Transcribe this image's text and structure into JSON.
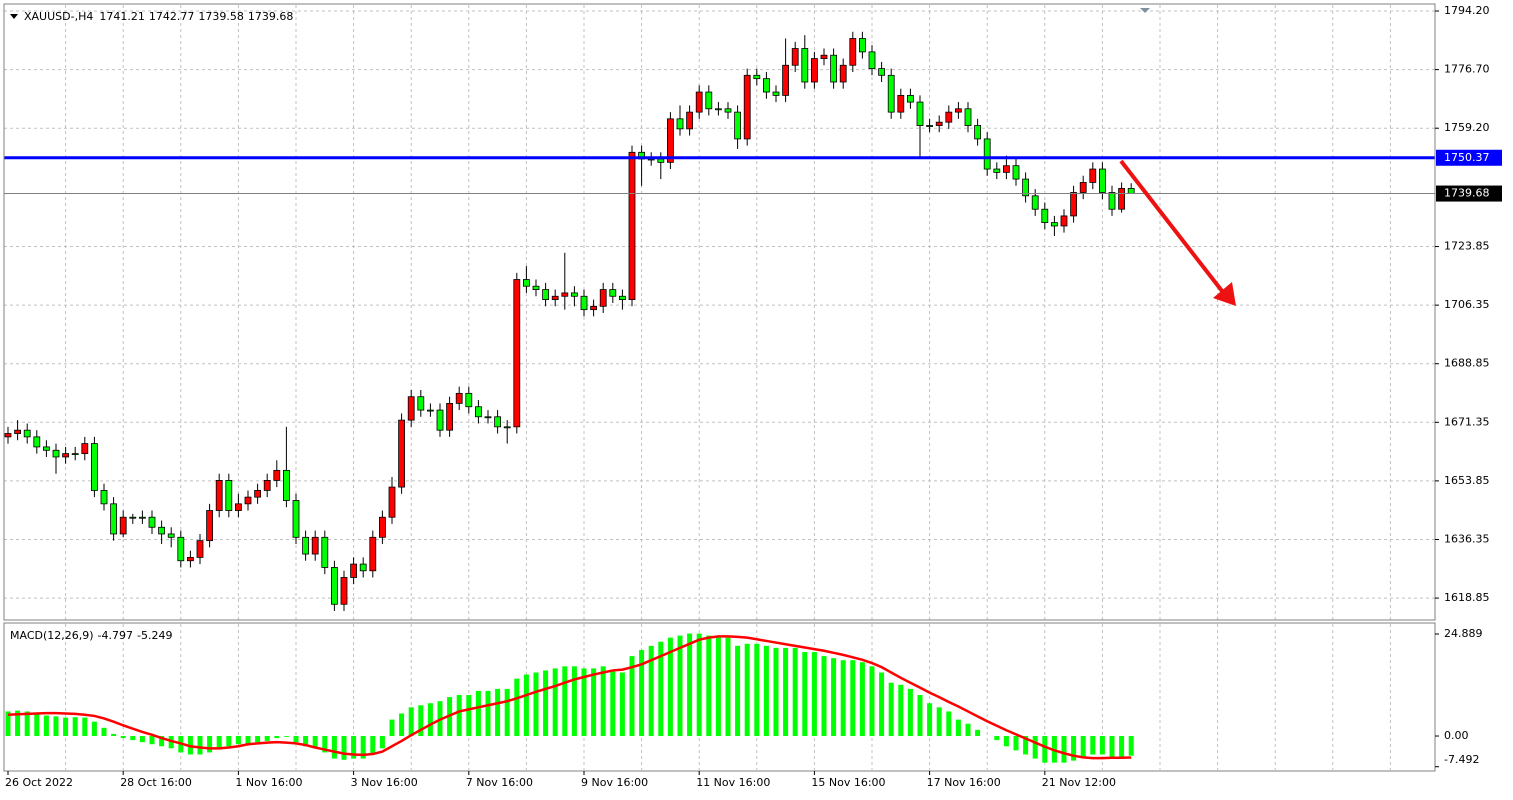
{
  "chart_data": [
    {
      "type": "candlestick",
      "title": "XAUUSD-,H4",
      "categories": [
        "26 Oct 2022",
        null,
        null,
        null,
        null,
        null,
        null,
        null,
        null,
        null,
        null,
        null,
        "28 Oct 16:00",
        null,
        null,
        null,
        null,
        null,
        null,
        null,
        null,
        null,
        null,
        null,
        "1 Nov 16:00",
        null,
        null,
        null,
        null,
        null,
        null,
        null,
        null,
        null,
        null,
        null,
        "3 Nov 16:00",
        null,
        null,
        null,
        null,
        null,
        null,
        null,
        null,
        null,
        null,
        null,
        "7 Nov 16:00",
        null,
        null,
        null,
        null,
        null,
        null,
        null,
        null,
        null,
        null,
        null,
        "9 Nov 16:00",
        null,
        null,
        null,
        null,
        null,
        null,
        null,
        null,
        null,
        null,
        null,
        "11 Nov 16:00",
        null,
        null,
        null,
        null,
        null,
        null,
        null,
        null,
        null,
        null,
        null,
        "15 Nov 16:00",
        null,
        null,
        null,
        null,
        null,
        null,
        null,
        null,
        null,
        null,
        null,
        "17 Nov 16:00",
        null,
        null,
        null,
        null,
        null,
        null,
        null,
        null,
        null,
        null,
        null,
        "21 Nov 12:00",
        null,
        null,
        null,
        null,
        null,
        null,
        null,
        null,
        null
      ],
      "open": [
        1667,
        1668,
        1669,
        1667,
        1664,
        1663,
        1661,
        1662,
        1662,
        1665,
        1651,
        1647,
        1638,
        1643,
        1643,
        1643,
        1640,
        1638,
        1637,
        1630,
        1631,
        1636,
        1645,
        1654,
        1645,
        1647,
        1649,
        1651,
        1654,
        1657,
        1648,
        1637,
        1632,
        1637,
        1628,
        1617,
        1625,
        1629,
        1627,
        1637,
        1643,
        1652,
        1672,
        1679,
        1675,
        1675,
        1669,
        1677,
        1680,
        1676,
        1673,
        1673,
        1670,
        1670,
        1714,
        1712,
        1711,
        1708,
        1709,
        1710,
        1709,
        1705,
        1706,
        1711,
        1709,
        1708,
        1752,
        1750,
        1750,
        1749,
        1762,
        1759,
        1764,
        1770,
        1765,
        1765,
        1764,
        1756,
        1775,
        1774,
        1770,
        1769,
        1778,
        1783,
        1773,
        1780,
        1781,
        1773,
        1778,
        1786,
        1782,
        1777,
        1775,
        1764,
        1769,
        1767,
        1760,
        1760,
        1761,
        1764,
        1765,
        1760,
        1756,
        1747,
        1746,
        1748,
        1744,
        1739,
        1735,
        1731,
        1730,
        1733,
        1740,
        1743,
        1747,
        1740,
        1735,
        1741.21
      ],
      "high": [
        1670,
        1672,
        1671,
        1669,
        1666,
        1665,
        1664,
        1664,
        1667,
        1667,
        1653,
        1649,
        1645,
        1644,
        1645,
        1645,
        1642,
        1640,
        1639,
        1633,
        1638,
        1647,
        1656,
        1656,
        1650,
        1651,
        1653,
        1656,
        1660,
        1670,
        1650,
        1639,
        1639,
        1639,
        1630,
        1627,
        1631,
        1631,
        1639,
        1645,
        1655,
        1674,
        1681,
        1681,
        1677,
        1677,
        1679,
        1682,
        1682,
        1678,
        1675,
        1675,
        1672,
        1716,
        1718,
        1714,
        1713,
        1711,
        1722,
        1712,
        1711,
        1708,
        1713,
        1713,
        1711,
        1754,
        1754,
        1752,
        1752,
        1764,
        1766,
        1766,
        1772,
        1772,
        1767,
        1767,
        1766,
        1777,
        1777,
        1776,
        1772,
        1786,
        1785,
        1787,
        1782,
        1783,
        1783,
        1780,
        1788,
        1788,
        1784,
        1779,
        1777,
        1771,
        1771,
        1769,
        1762,
        1763,
        1766,
        1767,
        1767,
        1762,
        1758,
        1749,
        1751,
        1750,
        1746,
        1741,
        1737,
        1733,
        1735,
        1742,
        1745,
        1749,
        1749,
        1742,
        1743,
        1742.77
      ],
      "low": [
        1665,
        1666,
        1665,
        1662,
        1661,
        1656,
        1659,
        1660,
        1660,
        1649,
        1645,
        1636,
        1637,
        1641,
        1641,
        1638,
        1635,
        1634,
        1628,
        1628,
        1629,
        1634,
        1643,
        1643,
        1643,
        1645,
        1647,
        1649,
        1652,
        1646,
        1635,
        1630,
        1630,
        1626,
        1615,
        1615,
        1623,
        1625,
        1625,
        1635,
        1641,
        1650,
        1670,
        1673,
        1673,
        1667,
        1667,
        1675,
        1674,
        1671,
        1671,
        1668,
        1665,
        1668,
        1710,
        1709,
        1706,
        1706,
        1705,
        1706,
        1703,
        1703,
        1704,
        1707,
        1705,
        1706,
        1742,
        1748,
        1744,
        1747,
        1757,
        1757,
        1762,
        1763,
        1763,
        1762,
        1753,
        1754,
        1772,
        1768,
        1767,
        1767,
        1776,
        1771,
        1771,
        1778,
        1771,
        1771,
        1776,
        1780,
        1775,
        1773,
        1762,
        1762,
        1765,
        1750,
        1758,
        1758,
        1759,
        1762,
        1758,
        1754,
        1745,
        1744,
        1744,
        1742,
        1737,
        1733,
        1729,
        1727,
        1728,
        1731,
        1738,
        1741,
        1738,
        1733,
        1734,
        1739.58
      ],
      "close": [
        1668,
        1669,
        1667,
        1664,
        1663,
        1661,
        1662,
        1662,
        1665,
        1651,
        1647,
        1638,
        1643,
        1643,
        1643,
        1640,
        1638,
        1637,
        1630,
        1631,
        1636,
        1645,
        1654,
        1645,
        1647,
        1649,
        1651,
        1654,
        1657,
        1648,
        1637,
        1632,
        1637,
        1628,
        1617,
        1625,
        1629,
        1627,
        1637,
        1643,
        1652,
        1672,
        1679,
        1675,
        1675,
        1669,
        1677,
        1680,
        1676,
        1673,
        1673,
        1670,
        1670,
        1714,
        1712,
        1711,
        1708,
        1709,
        1710,
        1709,
        1705,
        1706,
        1711,
        1709,
        1708,
        1752,
        1750,
        1750,
        1749,
        1762,
        1759,
        1764,
        1770,
        1765,
        1765,
        1764,
        1756,
        1775,
        1774,
        1770,
        1769,
        1778,
        1783,
        1773,
        1780,
        1781,
        1773,
        1778,
        1786,
        1782,
        1777,
        1775,
        1764,
        1769,
        1767,
        1760,
        1760,
        1761,
        1764,
        1765,
        1760,
        1756,
        1747,
        1746,
        1748,
        1744,
        1739,
        1735,
        1731,
        1730,
        1733,
        1740,
        1743,
        1747,
        1740,
        1735,
        1741.21,
        1739.68
      ],
      "up_color": "#ff0000",
      "down_color": "#00ff00",
      "levels": [
        {
          "value": 1750.37,
          "color": "#0000ff"
        }
      ],
      "ylim": [
        1612.3,
        1796.0
      ],
      "yticks": [
        {
          "value": 1794.2,
          "label": "1794.20"
        },
        {
          "value": 1776.7,
          "label": "1776.70"
        },
        {
          "value": 1759.2,
          "label": "1759.20"
        },
        {
          "value": 1723.85,
          "label": "1723.85"
        },
        {
          "value": 1706.35,
          "label": "1706.35"
        },
        {
          "value": 1688.85,
          "label": "1688.85"
        },
        {
          "value": 1671.35,
          "label": "1671.35"
        },
        {
          "value": 1653.85,
          "label": "1653.85"
        },
        {
          "value": 1636.35,
          "label": "1636.35"
        },
        {
          "value": 1618.85,
          "label": "1618.85"
        }
      ],
      "grid": true
    },
    {
      "type": "macd",
      "title": "MACD(12,26,9)",
      "values": [
        6,
        6.2,
        6,
        5.5,
        5,
        4.8,
        4.5,
        4.6,
        4.5,
        3.5,
        2,
        0.5,
        -0.5,
        -1,
        -1.5,
        -2,
        -2.5,
        -3,
        -4,
        -4.5,
        -4.5,
        -4,
        -3,
        -2.5,
        -2,
        -2,
        -1.5,
        -1.2,
        -0.5,
        -0.2,
        -1.5,
        -2.5,
        -3,
        -4,
        -5.5,
        -5.8,
        -5.5,
        -5.5,
        -4.5,
        -3,
        4,
        5.5,
        7,
        7.5,
        8,
        8.5,
        9.5,
        10,
        10,
        11,
        11,
        11.5,
        11.5,
        14,
        15,
        15.5,
        16,
        16.5,
        17,
        17,
        16.5,
        16.5,
        17,
        16,
        15.5,
        19.5,
        21,
        22,
        23,
        24,
        24.5,
        25,
        25,
        24.5,
        24.5,
        24,
        22,
        22.5,
        22.5,
        22,
        21.5,
        21.5,
        21.5,
        20.5,
        20.5,
        19.5,
        19,
        18.5,
        18.5,
        18,
        17,
        15.5,
        13,
        12.5,
        11.5,
        10,
        8,
        7,
        6,
        4,
        3,
        1.5,
        0,
        -1,
        -2.5,
        -3.5,
        -4.5,
        -5.5,
        -6.5,
        -6.5,
        -6.5,
        -6,
        -5,
        -4.5,
        -4.5,
        -5,
        -5,
        -4.797
      ],
      "signal": [
        5.2,
        5.3,
        5.4,
        5.5,
        5.6,
        5.6,
        5.5,
        5.4,
        5.2,
        4.9,
        4.3,
        3.5,
        2.6,
        1.8,
        1.0,
        0.3,
        -0.5,
        -1.2,
        -1.8,
        -2.5,
        -2.8,
        -3.0,
        -3.0,
        -2.8,
        -2.5,
        -2.0,
        -1.8,
        -1.6,
        -1.5,
        -1.6,
        -1.8,
        -2.2,
        -2.8,
        -3.3,
        -3.8,
        -4.3,
        -4.5,
        -4.6,
        -4.4,
        -3.8,
        -2.5,
        -1.2,
        0.2,
        1.5,
        2.8,
        4.0,
        5.0,
        6.0,
        6.5,
        7.0,
        7.5,
        8.0,
        8.5,
        9.2,
        10.0,
        10.8,
        11.5,
        12.2,
        13.0,
        13.8,
        14.4,
        15.0,
        15.5,
        16.0,
        16.2,
        16.8,
        17.5,
        18.5,
        19.5,
        20.5,
        21.5,
        22.5,
        23.5,
        24,
        24.3,
        24.3,
        24.2,
        24,
        23.6,
        23.2,
        22.8,
        22.4,
        22,
        21.6,
        21.2,
        20.8,
        20.3,
        19.8,
        19.2,
        18.6,
        17.8,
        16.8,
        15.5,
        14.2,
        13,
        11.8,
        10.6,
        9.5,
        8.3,
        7.2,
        6,
        4.8,
        3.6,
        2.5,
        1.4,
        0.4,
        -0.6,
        -1.6,
        -2.6,
        -3.5,
        -4.2,
        -4.8,
        -5.2,
        -5.4,
        -5.4,
        -5.3,
        -5.3,
        -5.249
      ],
      "color": "#00ff00",
      "signal_color": "#ff0000",
      "ylim": [
        -8.29,
        27.33
      ],
      "yticks": [
        24.889,
        {
          "value": 0,
          "label": "0.00"
        },
        -7.492
      ]
    }
  ]
}
